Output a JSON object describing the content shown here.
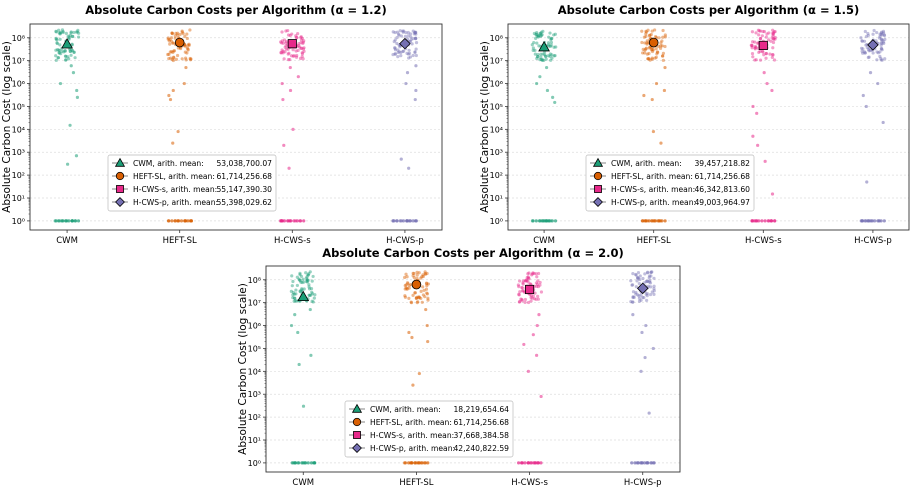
{
  "colors": {
    "CWM": "#1b9e77",
    "HEFT-SL": "#d95f02",
    "H-CWS-s": "#e7298a",
    "H-CWS-p": "#7570b3"
  },
  "chart_data": [
    {
      "type": "scatter",
      "title": "Absolute Carbon Costs per Algorithm",
      "title_param": "(α = 1.2)",
      "ylabel": "Absolute Carbon Cost (log scale)",
      "yscale": "log",
      "ylim": [
        0.4,
        400000000
      ],
      "yticks": [
        1,
        10,
        100,
        1000,
        10000,
        100000,
        1000000,
        10000000,
        100000000
      ],
      "ytick_labels": [
        "10⁰",
        "10¹",
        "10²",
        "10³",
        "10⁴",
        "10⁵",
        "10⁶",
        "10⁷",
        "10⁸"
      ],
      "grid": true,
      "legend_position": "lower-left",
      "categories": [
        "CWM",
        "HEFT-SL",
        "H-CWS-s",
        "H-CWS-p"
      ],
      "series": [
        {
          "name": "CWM",
          "marker": "triangle",
          "mean": 53038700.07,
          "mean_label": "CWM, arith. mean:",
          "mean_text": "53,038,700.07",
          "points": [
            700,
            300,
            15000,
            250000,
            500000,
            1000000,
            3000000,
            6000000,
            1,
            1,
            1,
            1,
            1,
            1,
            1,
            1,
            1,
            1
          ]
        },
        {
          "name": "HEFT-SL",
          "marker": "circle",
          "mean": 61714256.68,
          "mean_label": "HEFT-SL, arith. mean:",
          "mean_text": "61,714,256.68",
          "points": [
            2500,
            8000,
            200000,
            300000,
            500000,
            1000000,
            5000000,
            1,
            1,
            1,
            1,
            1,
            1,
            1,
            1,
            1,
            1
          ]
        },
        {
          "name": "H-CWS-s",
          "marker": "square",
          "mean": 55147390.3,
          "mean_label": "H-CWS-s, arith. mean:",
          "mean_text": "55,147,390.30",
          "points": [
            200,
            2000,
            10000,
            200000,
            500000,
            1000000,
            2000000,
            5000000,
            1,
            1,
            1,
            1,
            1,
            1,
            1,
            1,
            1,
            1
          ]
        },
        {
          "name": "H-CWS-p",
          "marker": "diamond",
          "mean": 55398029.62,
          "mean_label": "H-CWS-p, arith. mean:",
          "mean_text": "55,398,029.62",
          "points": [
            200,
            500,
            200000,
            500000,
            1000000,
            3000000,
            6000000,
            1,
            1,
            1,
            1,
            1,
            1,
            1,
            1,
            1,
            1,
            1
          ]
        }
      ]
    },
    {
      "type": "scatter",
      "title": "Absolute Carbon Costs per Algorithm",
      "title_param": "(α = 1.5)",
      "ylabel": "Absolute Carbon Cost (log scale)",
      "yscale": "log",
      "ylim": [
        0.4,
        400000000
      ],
      "yticks": [
        1,
        10,
        100,
        1000,
        10000,
        100000,
        1000000,
        10000000,
        100000000
      ],
      "ytick_labels": [
        "10⁰",
        "10¹",
        "10²",
        "10³",
        "10⁴",
        "10⁵",
        "10⁶",
        "10⁷",
        "10⁸"
      ],
      "grid": true,
      "legend_position": "lower-left",
      "categories": [
        "CWM",
        "HEFT-SL",
        "H-CWS-s",
        "H-CWS-p"
      ],
      "series": [
        {
          "name": "CWM",
          "marker": "triangle",
          "mean": 39457218.82,
          "mean_label": "CWM, arith. mean:",
          "mean_text": "39,457,218.82",
          "points": [
            150000,
            250000,
            500000,
            1000000,
            2000000,
            5000000,
            1,
            1,
            1,
            1,
            1,
            1,
            1,
            1,
            1,
            1
          ]
        },
        {
          "name": "HEFT-SL",
          "marker": "circle",
          "mean": 61714256.68,
          "mean_label": "HEFT-SL, arith. mean:",
          "mean_text": "61,714,256.68",
          "points": [
            2500,
            8000,
            200000,
            300000,
            500000,
            1000000,
            5000000,
            1,
            1,
            1,
            1,
            1,
            1,
            1,
            1,
            1,
            1
          ]
        },
        {
          "name": "H-CWS-s",
          "marker": "square",
          "mean": 46342813.6,
          "mean_label": "H-CWS-s, arith. mean:",
          "mean_text": "46,342,813.60",
          "points": [
            15,
            400,
            2000,
            5000,
            50000,
            100000,
            500000,
            1000000,
            3000000,
            1,
            1,
            1,
            1,
            1,
            1,
            1,
            1,
            1
          ]
        },
        {
          "name": "H-CWS-p",
          "marker": "diamond",
          "mean": 49003964.97,
          "mean_label": "H-CWS-p, arith. mean:",
          "mean_text": "49,003,964.97",
          "points": [
            50,
            20000,
            100000,
            300000,
            1000000,
            3000000,
            1,
            1,
            1,
            1,
            1,
            1,
            1,
            1,
            1,
            1
          ]
        }
      ]
    },
    {
      "type": "scatter",
      "title": "Absolute Carbon Costs per Algorithm",
      "title_param": "(α = 2.0)",
      "ylabel": "Absolute Carbon Cost (log scale)",
      "yscale": "log",
      "ylim": [
        0.4,
        400000000
      ],
      "yticks": [
        1,
        10,
        100,
        1000,
        10000,
        100000,
        1000000,
        10000000,
        100000000
      ],
      "ytick_labels": [
        "10⁰",
        "10¹",
        "10²",
        "10³",
        "10⁴",
        "10⁵",
        "10⁶",
        "10⁷",
        "10⁸"
      ],
      "grid": true,
      "legend_position": "lower-center",
      "categories": [
        "CWM",
        "HEFT-SL",
        "H-CWS-s",
        "H-CWS-p"
      ],
      "series": [
        {
          "name": "CWM",
          "marker": "triangle",
          "mean": 18219654.64,
          "mean_label": "CWM, arith. mean:",
          "mean_text": "18,219,654.64",
          "points": [
            300,
            20000,
            50000,
            500000,
            1000000,
            3000000,
            5000000,
            1,
            1,
            1,
            1,
            1,
            1,
            1,
            1,
            1,
            1
          ]
        },
        {
          "name": "HEFT-SL",
          "marker": "circle",
          "mean": 61714256.68,
          "mean_label": "HEFT-SL, arith. mean:",
          "mean_text": "61,714,256.68",
          "points": [
            2500,
            8000,
            200000,
            300000,
            500000,
            1000000,
            5000000,
            1,
            1,
            1,
            1,
            1,
            1,
            1,
            1,
            1,
            1
          ]
        },
        {
          "name": "H-CWS-s",
          "marker": "square",
          "mean": 37668384.58,
          "mean_label": "H-CWS-s, arith. mean:",
          "mean_text": "37,668,384.58",
          "points": [
            800,
            10000,
            50000,
            150000,
            400000,
            1000000,
            3000000,
            1,
            1,
            1,
            1,
            1,
            1,
            1,
            1,
            1,
            1
          ]
        },
        {
          "name": "H-CWS-p",
          "marker": "diamond",
          "mean": 42240822.59,
          "mean_label": "H-CWS-p, arith. mean:",
          "mean_text": "42,240,822.59",
          "points": [
            150,
            10000,
            40000,
            100000,
            500000,
            1000000,
            3000000,
            1,
            1,
            1,
            1,
            1,
            1,
            1,
            1,
            1,
            1
          ]
        }
      ]
    }
  ]
}
